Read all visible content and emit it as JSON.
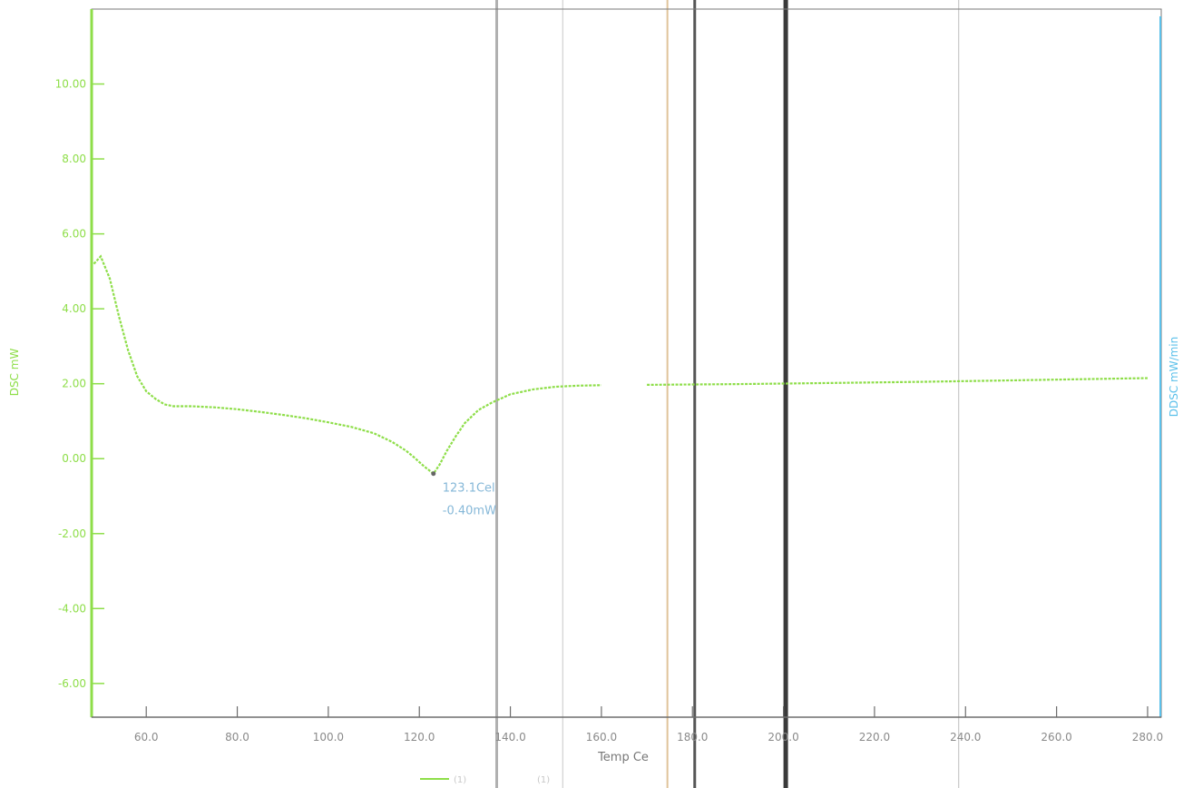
{
  "chart_data": {
    "type": "line",
    "xlabel": "Temp Ce",
    "ylabel": "DSC mW",
    "y2label": "DDSC mW/min",
    "xlim": [
      48,
      283
    ],
    "ylim": [
      -6.9,
      12
    ],
    "x_ticks": [
      60,
      80,
      100,
      120,
      140,
      160,
      180,
      200,
      220,
      240,
      260,
      280
    ],
    "x_tick_labels": [
      "60.0",
      "80.0",
      "100.0",
      "120.0",
      "140.0",
      "160.0",
      "180.0",
      "200.0",
      "220.0",
      "240.0",
      "260.0",
      "280.0"
    ],
    "y_ticks": [
      10,
      8,
      6,
      4,
      2,
      0,
      -2,
      -4,
      -6
    ],
    "y_tick_labels": [
      "10.00",
      "8.00",
      "6.00",
      "4.00",
      "2.00",
      "0.00",
      "-2.00",
      "-4.00",
      "-6.00"
    ],
    "grid": false,
    "legend_position": "bottom",
    "legend": [
      "(1)",
      "(1)"
    ],
    "series": [
      {
        "x": [
          48.5,
          50,
          52,
          54,
          56,
          58,
          60,
          62,
          64,
          66,
          70,
          75,
          80,
          85,
          90,
          95,
          100,
          105,
          110,
          114,
          117,
          119,
          121,
          123.1,
          124.5,
          126,
          128,
          130,
          133,
          136,
          140,
          145,
          150,
          155,
          160,
          170,
          190,
          210,
          230,
          250,
          270,
          280
        ],
        "y": [
          5.2,
          5.4,
          4.8,
          3.8,
          2.9,
          2.2,
          1.8,
          1.6,
          1.45,
          1.4,
          1.4,
          1.37,
          1.32,
          1.25,
          1.17,
          1.08,
          0.97,
          0.85,
          0.68,
          0.45,
          0.22,
          0.02,
          -0.2,
          -0.4,
          -0.15,
          0.2,
          0.6,
          0.95,
          1.3,
          1.5,
          1.72,
          1.85,
          1.92,
          1.95,
          1.96,
          1.97,
          1.99,
          2.02,
          2.05,
          2.09,
          2.13,
          2.15
        ]
      }
    ],
    "annotation": {
      "x": 123.1,
      "y": -0.4,
      "lines": [
        "123.1Cel",
        "-0.40mW"
      ]
    },
    "cursor_lines": [
      {
        "x": 137,
        "color": "#b0b0b0",
        "width": 3
      },
      {
        "x": 151.5,
        "color": "#c8c8c8",
        "width": 1
      },
      {
        "x": 174.5,
        "color": "#e0c49a",
        "width": 2
      },
      {
        "x": 180.5,
        "color": "#555555",
        "width": 3
      },
      {
        "x": 200.5,
        "color": "#3a3a3a",
        "width": 5
      },
      {
        "x": 238.5,
        "color": "#bdbdbd",
        "width": 1
      }
    ],
    "colors": {
      "dsc": "#8ede49",
      "ddsc_axis": "#5bc0ea",
      "annotation": "#86b8d8",
      "frame": "#7a7a7a"
    }
  }
}
